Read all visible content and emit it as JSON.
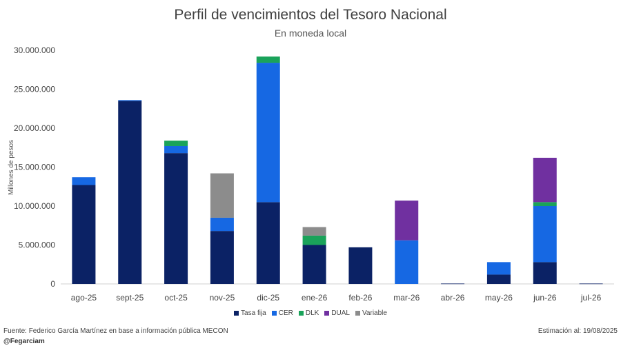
{
  "chart_data": {
    "type": "bar",
    "stacked": true,
    "title": "Perfil de vencimientos del Tesoro Nacional",
    "subtitle": "En moneda local",
    "ylabel": "Millones de pesos",
    "xlabel": "",
    "ylim": [
      0,
      30000000
    ],
    "yticks": [
      0,
      5000000,
      10000000,
      15000000,
      20000000,
      25000000,
      30000000
    ],
    "ytick_labels": [
      "0",
      "5.000.000",
      "10.000.000",
      "15.000.000",
      "20.000.000",
      "25.000.000",
      "30.000.000"
    ],
    "grid": false,
    "legend_position": "bottom",
    "categories": [
      "ago-25",
      "sept-25",
      "oct-25",
      "nov-25",
      "dic-25",
      "ene-26",
      "feb-26",
      "mar-26",
      "abr-26",
      "may-26",
      "jun-26",
      "jul-26"
    ],
    "series": [
      {
        "name": "Tasa fija",
        "color": "#0b2265",
        "values": [
          12700000,
          23500000,
          16800000,
          6800000,
          10500000,
          5000000,
          4700000,
          0,
          50000,
          1200000,
          2800000,
          50000
        ]
      },
      {
        "name": "CER",
        "color": "#1668e3",
        "values": [
          1000000,
          100000,
          900000,
          1700000,
          17900000,
          0,
          0,
          5600000,
          0,
          1600000,
          7200000,
          0
        ]
      },
      {
        "name": "DLK",
        "color": "#1aa35a",
        "values": [
          0,
          0,
          700000,
          0,
          800000,
          1200000,
          0,
          0,
          0,
          0,
          500000,
          0
        ]
      },
      {
        "name": "DUAL",
        "color": "#7030a0",
        "values": [
          0,
          0,
          0,
          0,
          0,
          0,
          0,
          5100000,
          0,
          0,
          5700000,
          0
        ]
      },
      {
        "name": "Variable",
        "color": "#8c8c8c",
        "values": [
          0,
          0,
          0,
          5700000,
          0,
          1100000,
          0,
          0,
          0,
          0,
          0,
          0
        ]
      }
    ]
  },
  "footer": {
    "source": "Fuente: Federico García Martínez en base a información pública MECON",
    "handle": "@Fegarciam",
    "estimate": "Estimación al: 19/08/2025"
  }
}
